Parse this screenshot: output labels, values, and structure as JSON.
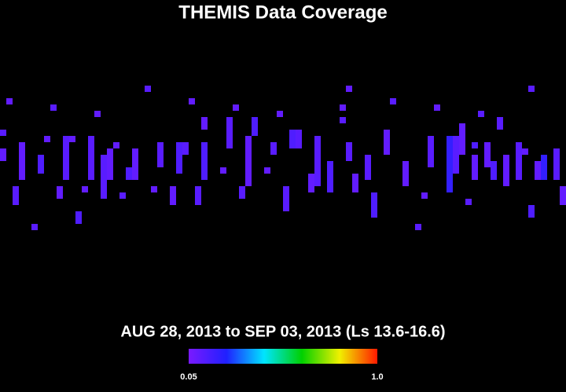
{
  "chart_data": {
    "type": "coverage-map",
    "title": "THEMIS Data Coverage",
    "subtitle": "AUG 28, 2013 to SEP 03, 2013 (Ls 13.6-16.6)",
    "xlim": [
      0,
      360
    ],
    "ylim": [
      -90,
      90
    ],
    "clim": [
      0.05,
      1.0
    ],
    "cticks": [
      0.05,
      {
        "value": 1.0,
        "label": "1.0"
      }
    ],
    "colors": [
      "#7a1aff",
      "#2020ff",
      "#00e5ff",
      "#00d000",
      "#f0f000",
      "#ff1a00"
    ],
    "cells": {
      "lon": [
        4,
        0,
        0,
        8,
        12,
        20,
        24,
        28,
        32,
        36,
        40,
        44,
        48,
        52,
        56,
        60,
        64,
        68,
        72,
        76,
        80,
        84,
        92,
        96,
        100,
        108,
        112,
        116,
        120,
        124,
        128,
        128,
        140,
        144,
        148,
        152,
        156,
        160,
        168,
        172,
        176,
        180,
        184,
        188,
        196,
        200,
        208,
        216,
        216,
        220,
        220,
        224,
        232,
        236,
        244,
        248,
        256,
        264,
        268,
        272,
        276,
        284,
        288,
        292,
        296,
        300,
        300,
        304,
        308,
        312,
        316,
        320,
        328,
        332,
        336,
        336,
        340,
        344,
        352,
        356
      ],
      "lat_top": [
        35,
        15,
        3,
        -21,
        7,
        -45,
        -1,
        11,
        31,
        -21,
        11,
        11,
        -37,
        -21,
        11,
        27,
        -1,
        3,
        7,
        -25,
        -9,
        3,
        43,
        -21,
        7,
        -21,
        7,
        7,
        35,
        -21,
        23,
        7,
        -9,
        23,
        31,
        -21,
        11,
        23,
        -9,
        7,
        27,
        -21,
        15,
        15,
        -13,
        11,
        -5,
        31,
        23,
        43,
        7,
        -13,
        -1,
        -25,
        15,
        35,
        -5,
        -45,
        -25,
        11,
        31,
        11,
        11,
        19,
        -29,
        7,
        -1,
        27,
        7,
        -5,
        23,
        -1,
        7,
        3,
        -33,
        43,
        -5,
        -1,
        3,
        -21
      ],
      "lat_bottom": [
        31,
        11,
        -5,
        -33,
        -17,
        -49,
        -13,
        7,
        27,
        -29,
        -17,
        7,
        -45,
        -25,
        -17,
        23,
        -29,
        -17,
        3,
        -29,
        -17,
        -17,
        39,
        -25,
        -9,
        -33,
        -13,
        -1,
        31,
        -33,
        15,
        -17,
        -13,
        3,
        27,
        -29,
        -21,
        11,
        -13,
        -1,
        23,
        -37,
        3,
        3,
        -25,
        -21,
        -25,
        27,
        19,
        39,
        -5,
        -25,
        -17,
        -41,
        -1,
        31,
        -21,
        -49,
        -29,
        -9,
        27,
        -25,
        -13,
        -1,
        -33,
        3,
        -17,
        23,
        -9,
        -17,
        15,
        -21,
        -17,
        -1,
        -41,
        39,
        -17,
        -17,
        -17,
        -33
      ],
      "values": [
        0.1,
        0.12,
        0.1,
        0.12,
        0.1,
        0.12,
        0.14,
        0.1,
        0.12,
        0.1,
        0.12,
        0.1,
        0.14,
        0.1,
        0.12,
        0.1,
        0.12,
        0.1,
        0.1,
        0.12,
        0.14,
        0.1,
        0.12,
        0.1,
        0.12,
        0.1,
        0.14,
        0.12,
        0.1,
        0.12,
        0.1,
        0.14,
        0.1,
        0.12,
        0.1,
        0.12,
        0.1,
        0.14,
        0.1,
        0.12,
        0.1,
        0.12,
        0.14,
        0.12,
        0.1,
        0.12,
        0.14,
        0.1,
        0.12,
        0.1,
        0.12,
        0.1,
        0.12,
        0.14,
        0.1,
        0.12,
        0.1,
        0.12,
        0.1,
        0.12,
        0.1,
        0.2,
        0.12,
        0.1,
        0.12,
        0.14,
        0.1,
        0.12,
        0.1,
        0.14,
        0.12,
        0.1,
        0.12,
        0.1,
        0.14,
        0.12,
        0.1,
        0.2,
        0.12,
        0.1
      ]
    }
  }
}
